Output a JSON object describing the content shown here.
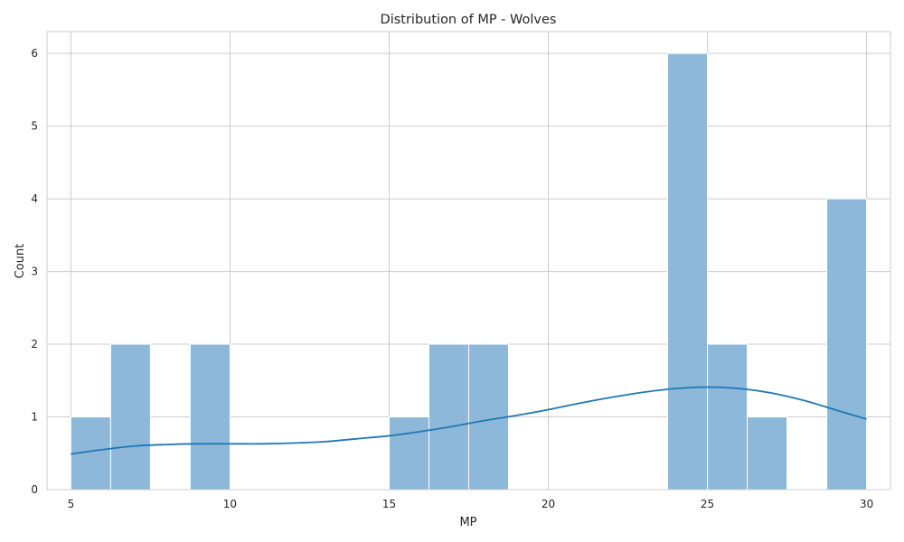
{
  "chart_data": {
    "type": "bar",
    "title": "Distribution of MP - Wolves",
    "xlabel": "MP",
    "ylabel": "Count",
    "xlim": [
      4.25,
      30.75
    ],
    "ylim": [
      0,
      6.3
    ],
    "x_ticks": [
      5,
      10,
      15,
      20,
      25,
      30
    ],
    "y_ticks": [
      0,
      1,
      2,
      3,
      4,
      5,
      6
    ],
    "grid": true,
    "bins": [
      {
        "x0": 5.0,
        "x1": 6.25,
        "count": 1
      },
      {
        "x0": 6.25,
        "x1": 7.5,
        "count": 2
      },
      {
        "x0": 7.5,
        "x1": 8.75,
        "count": 0
      },
      {
        "x0": 8.75,
        "x1": 10.0,
        "count": 2
      },
      {
        "x0": 10.0,
        "x1": 11.25,
        "count": 0
      },
      {
        "x0": 11.25,
        "x1": 12.5,
        "count": 0
      },
      {
        "x0": 12.5,
        "x1": 13.75,
        "count": 0
      },
      {
        "x0": 13.75,
        "x1": 15.0,
        "count": 0
      },
      {
        "x0": 15.0,
        "x1": 16.25,
        "count": 1
      },
      {
        "x0": 16.25,
        "x1": 17.5,
        "count": 2
      },
      {
        "x0": 17.5,
        "x1": 18.75,
        "count": 2
      },
      {
        "x0": 18.75,
        "x1": 20.0,
        "count": 0
      },
      {
        "x0": 20.0,
        "x1": 21.25,
        "count": 0
      },
      {
        "x0": 21.25,
        "x1": 22.5,
        "count": 0
      },
      {
        "x0": 22.5,
        "x1": 23.75,
        "count": 0
      },
      {
        "x0": 23.75,
        "x1": 25.0,
        "count": 6
      },
      {
        "x0": 25.0,
        "x1": 26.25,
        "count": 2
      },
      {
        "x0": 26.25,
        "x1": 27.5,
        "count": 1
      },
      {
        "x0": 27.5,
        "x1": 28.75,
        "count": 0
      },
      {
        "x0": 28.75,
        "x1": 30.0,
        "count": 4
      }
    ],
    "kde": {
      "x": [
        5,
        6,
        7,
        8,
        9,
        10,
        11,
        12,
        13,
        14,
        15,
        16,
        17,
        18,
        19,
        20,
        21,
        22,
        23,
        24,
        25,
        26,
        27,
        28,
        29,
        30
      ],
      "y": [
        0.49,
        0.55,
        0.6,
        0.62,
        0.63,
        0.63,
        0.63,
        0.64,
        0.66,
        0.7,
        0.74,
        0.8,
        0.87,
        0.95,
        1.02,
        1.1,
        1.19,
        1.27,
        1.34,
        1.39,
        1.41,
        1.39,
        1.33,
        1.23,
        1.1,
        0.97
      ]
    },
    "colors": {
      "bar_fill": "#8db8d9",
      "bar_edge": "#ffffff",
      "kde_line": "#1f77b4",
      "grid": "#cccccc",
      "frame": "#cccccc"
    }
  }
}
